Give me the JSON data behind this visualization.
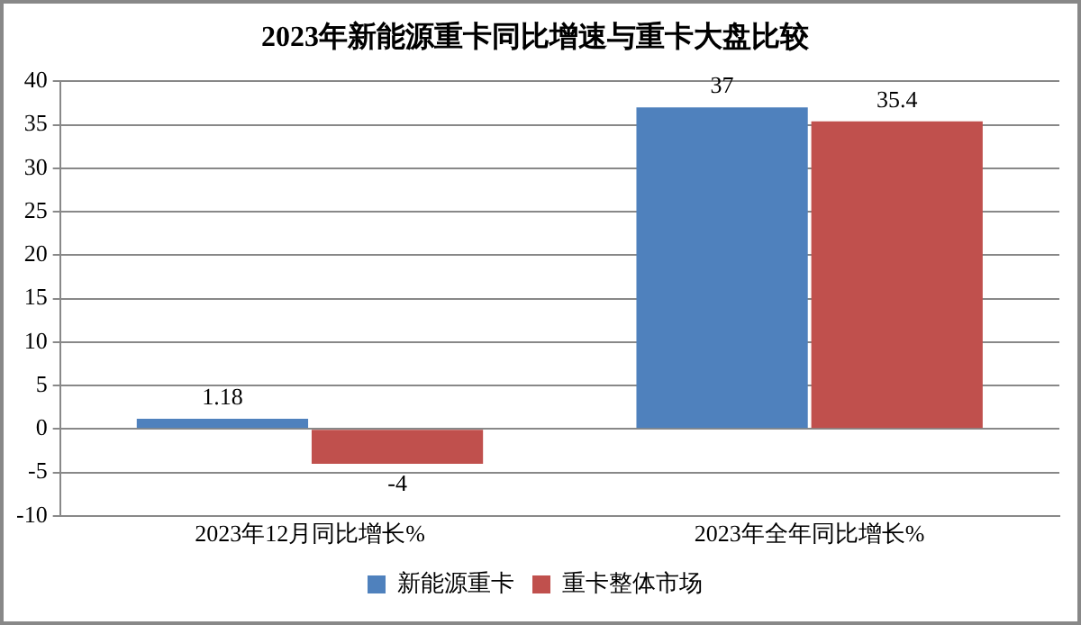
{
  "chart_data": {
    "type": "bar",
    "title": "2023年新能源重卡同比增速与重卡大盘比较",
    "categories": [
      "2023年12月同比增长%",
      "2023年全年同比增长%"
    ],
    "series": [
      {
        "name": "新能源重卡",
        "color": "#4f81bd",
        "values": [
          1.18,
          37
        ]
      },
      {
        "name": "重卡整体市场",
        "color": "#c0504d",
        "values": [
          -4,
          35.4
        ]
      }
    ],
    "ylim": [
      -10,
      40
    ],
    "yticks": [
      -10,
      -5,
      0,
      5,
      10,
      15,
      20,
      25,
      30,
      35,
      40
    ],
    "grid": "y",
    "legend": "bottom",
    "data_labels": true
  }
}
